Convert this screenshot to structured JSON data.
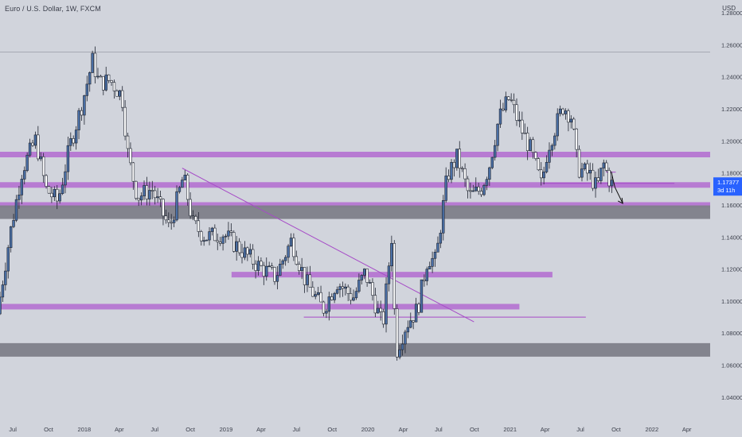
{
  "header": {
    "symbol_title": "Euro / U.S. Dollar, 1W, FXCM",
    "currency": "USD"
  },
  "price_tag": {
    "price": "1.17377",
    "countdown": "3d 11h"
  },
  "colors": {
    "background": "#d1d4dc",
    "candle_up": "#4a6fa5",
    "candle_down": "#4a6fa5",
    "zone_purple": "#b36bd0",
    "zone_gray": "#7e8089",
    "trendline": "#a64bc7",
    "price_tag": "#2962ff"
  },
  "chart_data": {
    "type": "candlestick",
    "title": "Euro / U.S. Dollar, 1W, FXCM",
    "y_unit": "USD",
    "ylim": [
      1.03,
      1.288
    ],
    "y_ticks": [
      "1.28000",
      "1.26000",
      "1.24000",
      "1.22000",
      "1.20000",
      "1.18000",
      "1.16000",
      "1.14000",
      "1.12000",
      "1.10000",
      "1.08000",
      "1.06000",
      "1.04000"
    ],
    "x_ticks": [
      "Jul",
      "Oct",
      "2018",
      "Apr",
      "Jul",
      "Oct",
      "2019",
      "Apr",
      "Jul",
      "Oct",
      "2020",
      "Apr",
      "Jul",
      "Oct",
      "2021",
      "Apr",
      "Jul",
      "Oct",
      "2022",
      "Apr"
    ],
    "x_range": [
      "2017-06",
      "2022-05"
    ],
    "close_path": [
      [
        "2017-05-29",
        1.092
      ],
      [
        "2017-07-01",
        1.142
      ],
      [
        "2017-08-01",
        1.182
      ],
      [
        "2017-09-05",
        1.201
      ],
      [
        "2017-10-01",
        1.17
      ],
      [
        "2017-11-01",
        1.162
      ],
      [
        "2017-12-01",
        1.196
      ],
      [
        "2018-01-01",
        1.222
      ],
      [
        "2018-01-29",
        1.25
      ],
      [
        "2018-02-15",
        1.236
      ],
      [
        "2018-03-15",
        1.238
      ],
      [
        "2018-04-15",
        1.228
      ],
      [
        "2018-05-01",
        1.19
      ],
      [
        "2018-05-25",
        1.165
      ],
      [
        "2018-07-01",
        1.17
      ],
      [
        "2018-08-15",
        1.145
      ],
      [
        "2018-09-20",
        1.178
      ],
      [
        "2018-10-15",
        1.148
      ],
      [
        "2018-11-15",
        1.14
      ],
      [
        "2019-01-01",
        1.142
      ],
      [
        "2019-02-15",
        1.132
      ],
      [
        "2019-04-01",
        1.122
      ],
      [
        "2019-05-15",
        1.115
      ],
      [
        "2019-06-25",
        1.138
      ],
      [
        "2019-08-01",
        1.112
      ],
      [
        "2019-09-15",
        1.095
      ],
      [
        "2019-10-20",
        1.112
      ],
      [
        "2019-12-01",
        1.102
      ],
      [
        "2020-01-01",
        1.118
      ],
      [
        "2020-02-15",
        1.084
      ],
      [
        "2020-03-09",
        1.14
      ],
      [
        "2020-03-20",
        1.068
      ],
      [
        "2020-04-15",
        1.085
      ],
      [
        "2020-05-15",
        1.095
      ],
      [
        "2020-06-10",
        1.127
      ],
      [
        "2020-07-01",
        1.125
      ],
      [
        "2020-07-30",
        1.178
      ],
      [
        "2020-08-25",
        1.19
      ],
      [
        "2020-09-25",
        1.165
      ],
      [
        "2020-10-25",
        1.17
      ],
      [
        "2020-11-15",
        1.184
      ],
      [
        "2020-12-10",
        1.214
      ],
      [
        "2021-01-06",
        1.227
      ],
      [
        "2021-02-01",
        1.21
      ],
      [
        "2021-03-01",
        1.195
      ],
      [
        "2021-03-30",
        1.172
      ],
      [
        "2021-04-15",
        1.196
      ],
      [
        "2021-05-25",
        1.222
      ],
      [
        "2021-06-15",
        1.215
      ],
      [
        "2021-07-01",
        1.183
      ],
      [
        "2021-08-01",
        1.179
      ],
      [
        "2021-08-20",
        1.17
      ],
      [
        "2021-09-05",
        1.186
      ],
      [
        "2021-09-25",
        1.173
      ]
    ],
    "horizontal_zones": [
      {
        "kind": "purple",
        "from": "2017-05-29",
        "to": "2022-05-31",
        "price": 1.1915
      },
      {
        "kind": "purple",
        "from": "2017-05-29",
        "to": "2022-05-31",
        "price": 1.1725
      },
      {
        "kind": "purple",
        "from": "2017-05-29",
        "to": "2022-05-31",
        "price": 1.16
      },
      {
        "kind": "gray",
        "from": "2017-05-29",
        "to": "2022-05-31",
        "price": 1.1555
      },
      {
        "kind": "purple",
        "from": "2019-01-15",
        "to": "2021-04-20",
        "price": 1.1165
      },
      {
        "kind": "purple",
        "from": "2017-05-29",
        "to": "2021-01-25",
        "price": 1.0965
      },
      {
        "kind": "gray",
        "from": "2017-05-29",
        "to": "2022-05-31",
        "price": 1.0695
      }
    ],
    "lines": [
      {
        "kind": "trendline",
        "from": [
          "2018-09-10",
          1.183
        ],
        "to": [
          "2020-09-30",
          1.087
        ]
      },
      {
        "kind": "thin",
        "from": [
          "2019-07-20",
          1.09
        ],
        "to": [
          "2021-07-15",
          1.09
        ]
      },
      {
        "kind": "thin",
        "from": [
          "2021-03-25",
          1.1735
        ],
        "to": [
          "2022-02-28",
          1.1735
        ]
      },
      {
        "kind": "thin",
        "from": [
          "2021-09-05",
          1.1805
        ],
        "to": [
          "2021-09-30",
          1.1805
        ]
      },
      {
        "kind": "thin-gray",
        "from": [
          "2017-05-29",
          1.2555
        ],
        "to": [
          "2022-05-31",
          1.2555
        ]
      }
    ],
    "projection_arrow": [
      [
        "2021-09-18",
        1.181
      ],
      [
        "2021-09-28",
        1.171
      ],
      [
        "2021-10-18",
        1.161
      ]
    ],
    "grid": false,
    "legend": "none"
  }
}
